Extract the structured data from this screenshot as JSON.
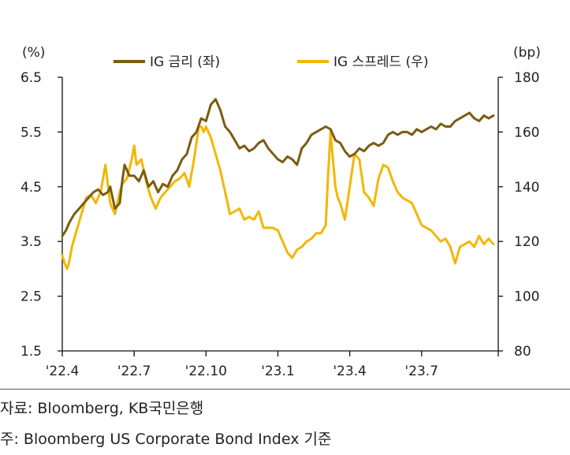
{
  "chart_data": {
    "type": "line",
    "left_unit": "(%)",
    "right_unit": "(bp)",
    "left_ylim": [
      1.5,
      6.5
    ],
    "right_ylim": [
      80,
      180
    ],
    "left_ticks": [
      "6.5",
      "5.5",
      "4.5",
      "3.5",
      "2.5",
      "1.5"
    ],
    "left_tick_values": [
      6.5,
      5.5,
      4.5,
      3.5,
      2.5,
      1.5
    ],
    "right_ticks": [
      "180",
      "160",
      "140",
      "120",
      "100",
      "80"
    ],
    "right_tick_values": [
      180,
      160,
      140,
      120,
      100,
      80
    ],
    "x_ticks": [
      "'22.4",
      "'22.7",
      "'22.10",
      "'23.1",
      "'23.4",
      "'23.7"
    ],
    "x_tick_values": [
      0,
      3,
      6,
      9,
      12,
      15
    ],
    "x_range": [
      0,
      18.2
    ],
    "series": [
      {
        "name": "IG 금리 (좌)",
        "axis": "left",
        "color": "#7A5C12",
        "x": [
          0,
          0.15,
          0.3,
          0.5,
          0.7,
          0.9,
          1.1,
          1.3,
          1.5,
          1.7,
          1.9,
          2.0,
          2.2,
          2.4,
          2.5,
          2.6,
          2.8,
          3.0,
          3.2,
          3.4,
          3.6,
          3.8,
          4.0,
          4.2,
          4.4,
          4.6,
          4.8,
          5.0,
          5.2,
          5.4,
          5.6,
          5.8,
          6.0,
          6.2,
          6.4,
          6.6,
          6.8,
          7.0,
          7.2,
          7.4,
          7.6,
          7.8,
          8.0,
          8.2,
          8.4,
          8.6,
          8.8,
          9.0,
          9.2,
          9.4,
          9.6,
          9.8,
          10.0,
          10.2,
          10.4,
          10.6,
          10.8,
          11.0,
          11.2,
          11.4,
          11.6,
          11.8,
          12.0,
          12.2,
          12.4,
          12.6,
          12.8,
          13.0,
          13.2,
          13.4,
          13.6,
          13.8,
          14.0,
          14.2,
          14.4,
          14.6,
          14.8,
          15.0,
          15.2,
          15.4,
          15.6,
          15.8,
          16.0,
          16.2,
          16.4,
          16.6,
          16.8,
          17.0,
          17.2,
          17.4,
          17.6,
          17.8,
          18.0
        ],
        "values": [
          3.6,
          3.7,
          3.85,
          4.0,
          4.1,
          4.2,
          4.3,
          4.4,
          4.45,
          4.35,
          4.4,
          4.5,
          4.1,
          4.2,
          4.6,
          4.9,
          4.7,
          4.7,
          4.6,
          4.8,
          4.5,
          4.6,
          4.4,
          4.55,
          4.5,
          4.7,
          4.8,
          5.0,
          5.1,
          5.4,
          5.5,
          5.75,
          5.7,
          6.0,
          6.1,
          5.9,
          5.6,
          5.5,
          5.35,
          5.2,
          5.25,
          5.15,
          5.2,
          5.3,
          5.35,
          5.2,
          5.1,
          5.0,
          4.95,
          5.05,
          5.0,
          4.9,
          5.2,
          5.3,
          5.45,
          5.5,
          5.55,
          5.6,
          5.55,
          5.35,
          5.3,
          5.15,
          5.05,
          5.1,
          5.2,
          5.15,
          5.25,
          5.3,
          5.25,
          5.3,
          5.45,
          5.5,
          5.45,
          5.5,
          5.5,
          5.45,
          5.55,
          5.5,
          5.55,
          5.6,
          5.55,
          5.65,
          5.6,
          5.6,
          5.7,
          5.75,
          5.8,
          5.85,
          5.75,
          5.7,
          5.8,
          5.75,
          5.8
        ]
      },
      {
        "name": "IG 스프레드 (우)",
        "axis": "right",
        "color": "#F2B705",
        "x": [
          0,
          0.1,
          0.2,
          0.3,
          0.4,
          0.6,
          0.8,
          1.0,
          1.2,
          1.4,
          1.6,
          1.8,
          2.0,
          2.2,
          2.4,
          2.5,
          2.7,
          2.9,
          3.0,
          3.1,
          3.3,
          3.5,
          3.7,
          3.9,
          4.1,
          4.3,
          4.5,
          4.7,
          4.9,
          5.1,
          5.3,
          5.5,
          5.7,
          5.8,
          5.9,
          6.0,
          6.2,
          6.4,
          6.6,
          6.8,
          7.0,
          7.2,
          7.4,
          7.6,
          7.8,
          8.0,
          8.2,
          8.4,
          8.6,
          8.8,
          9.0,
          9.2,
          9.4,
          9.6,
          9.8,
          10.0,
          10.2,
          10.4,
          10.6,
          10.8,
          11.0,
          11.1,
          11.2,
          11.3,
          11.4,
          11.5,
          11.6,
          11.8,
          12.0,
          12.2,
          12.4,
          12.6,
          12.8,
          13.0,
          13.2,
          13.4,
          13.6,
          13.8,
          14.0,
          14.2,
          14.4,
          14.6,
          14.8,
          15.0,
          15.2,
          15.4,
          15.6,
          15.8,
          16.0,
          16.2,
          16.4,
          16.6,
          16.8,
          17.0,
          17.2,
          17.4,
          17.6,
          17.8,
          18.0
        ],
        "values": [
          115,
          112,
          110,
          113,
          118,
          124,
          130,
          136,
          137,
          134,
          138,
          148,
          134,
          130,
          138,
          141,
          143,
          150,
          155,
          148,
          150,
          142,
          136,
          132,
          136,
          138,
          140,
          142,
          143,
          145,
          140,
          150,
          162,
          162,
          160,
          162,
          158,
          152,
          146,
          138,
          130,
          131,
          132,
          128,
          129,
          128,
          131,
          125,
          125,
          125,
          124,
          120,
          116,
          114,
          117,
          118,
          120,
          121,
          123,
          123,
          126,
          145,
          160,
          150,
          140,
          136,
          134,
          128,
          140,
          152,
          150,
          138,
          136,
          133,
          143,
          148,
          147,
          142,
          138,
          136,
          135,
          134,
          130,
          126,
          125,
          124,
          122,
          120,
          121,
          118,
          112,
          118,
          119,
          120,
          118,
          122,
          119,
          121,
          119
        ]
      }
    ]
  },
  "source_text": "자료: Bloomberg, KB국민은행",
  "note_text": "주: Bloomberg US Corporate Bond Index 기준"
}
